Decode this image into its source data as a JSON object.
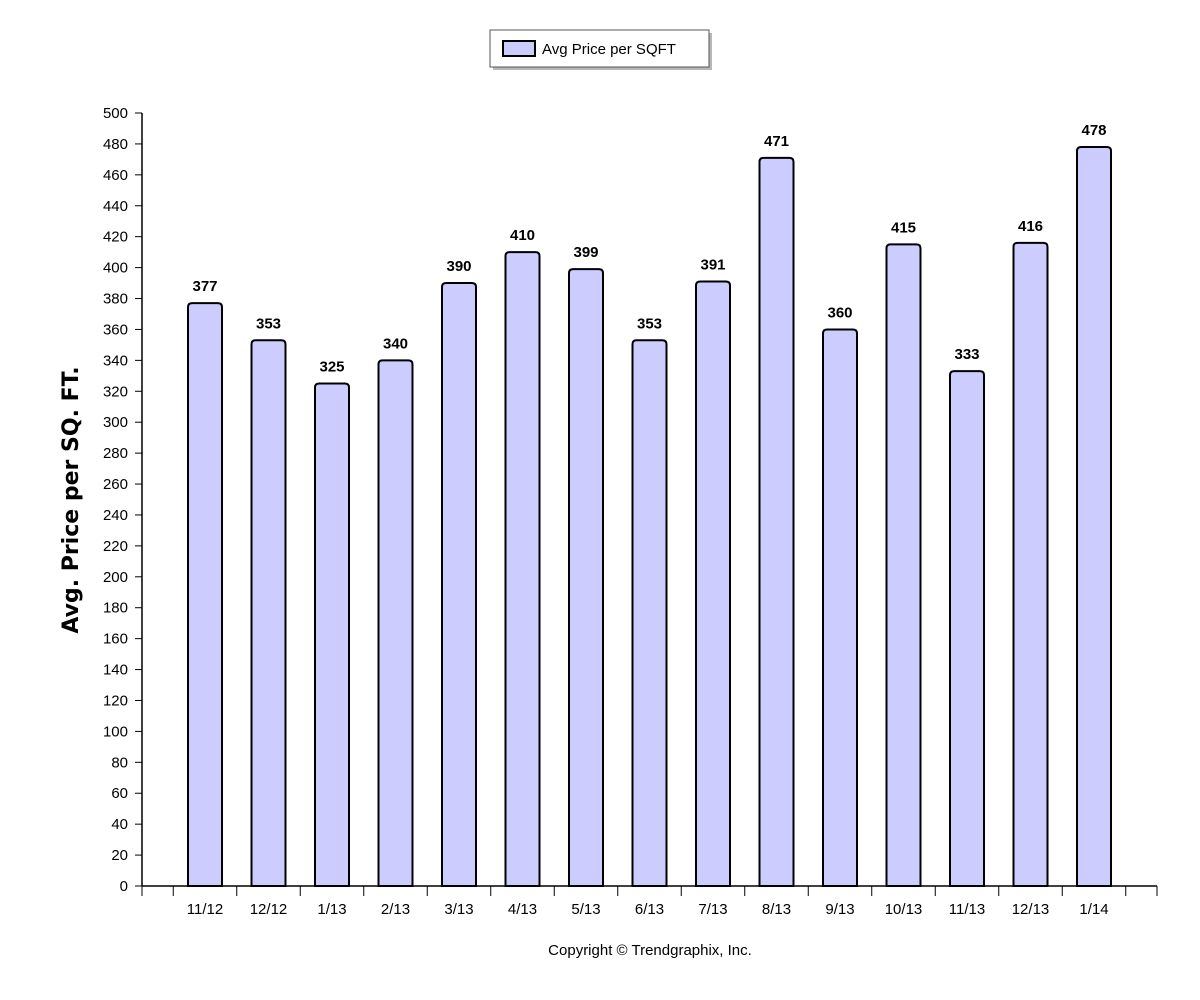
{
  "chart_data": {
    "type": "bar",
    "title": "",
    "xlabel": "",
    "ylabel": "Avg. Price per SQ. FT.",
    "categories": [
      "11/12",
      "12/12",
      "1/13",
      "2/13",
      "3/13",
      "4/13",
      "5/13",
      "6/13",
      "7/13",
      "8/13",
      "9/13",
      "10/13",
      "11/13",
      "12/13",
      "1/14"
    ],
    "series": [
      {
        "name": "Avg Price per SQFT",
        "values": [
          377,
          353,
          325,
          340,
          390,
          410,
          399,
          353,
          391,
          471,
          360,
          415,
          333,
          416,
          478
        ],
        "color": "#ccccff"
      }
    ],
    "ylim": [
      0,
      500
    ],
    "yticks": [
      0,
      20,
      40,
      60,
      80,
      100,
      120,
      140,
      160,
      180,
      200,
      220,
      240,
      260,
      280,
      300,
      320,
      340,
      360,
      380,
      400,
      420,
      440,
      460,
      480,
      500
    ],
    "legend": {
      "placement": "top-center"
    },
    "grid": false,
    "data_labels": true
  },
  "footer": {
    "copyright": "Copyright © Trendgraphix, Inc."
  }
}
